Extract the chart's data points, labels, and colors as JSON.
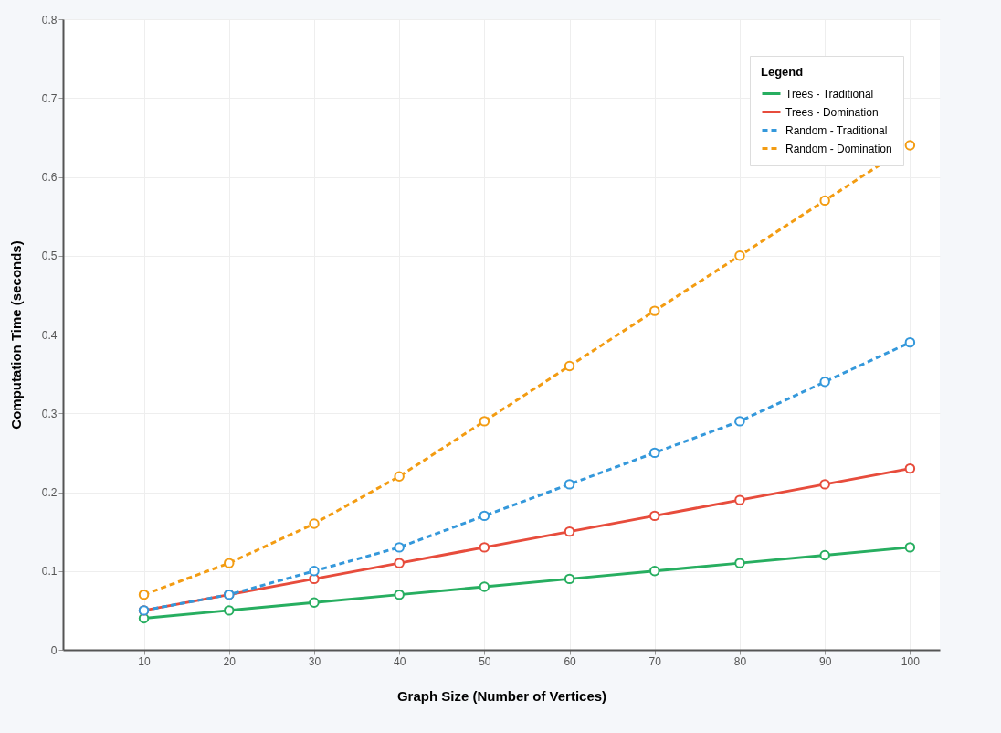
{
  "chart_data": {
    "type": "line",
    "xlabel": "Graph Size (Number of Vertices)",
    "ylabel": "Computation Time (seconds)",
    "legend_title": "Legend",
    "x": [
      10,
      20,
      30,
      40,
      50,
      60,
      70,
      80,
      90,
      100
    ],
    "series": [
      {
        "name": "Trees - Traditional",
        "color": "#27ae60",
        "line_style": "solid",
        "values": [
          0.04,
          0.05,
          0.06,
          0.07,
          0.08,
          0.09,
          0.1,
          0.11,
          0.12,
          0.13
        ]
      },
      {
        "name": "Trees - Domination",
        "color": "#e74c3c",
        "line_style": "solid",
        "values": [
          0.05,
          0.07,
          0.09,
          0.11,
          0.13,
          0.15,
          0.17,
          0.19,
          0.21,
          0.23
        ]
      },
      {
        "name": "Random - Traditional",
        "color": "#3498db",
        "line_style": "dashed",
        "values": [
          0.05,
          0.07,
          0.1,
          0.13,
          0.17,
          0.21,
          0.25,
          0.29,
          0.34,
          0.39
        ]
      },
      {
        "name": "Random - Domination",
        "color": "#f39c12",
        "line_style": "dashed",
        "values": [
          0.07,
          0.11,
          0.16,
          0.22,
          0.29,
          0.36,
          0.43,
          0.5,
          0.57,
          0.64
        ]
      }
    ],
    "xlim": [
      0.5,
      103.5
    ],
    "xticks": [
      10,
      20,
      30,
      40,
      50,
      60,
      70,
      80,
      90,
      100
    ],
    "ylim": [
      0,
      0.8
    ],
    "yticks": [
      0,
      0.1,
      0.2,
      0.3,
      0.4,
      0.5,
      0.6,
      0.7,
      0.8
    ],
    "grid": true,
    "legend": "top right",
    "marker": "circle"
  }
}
